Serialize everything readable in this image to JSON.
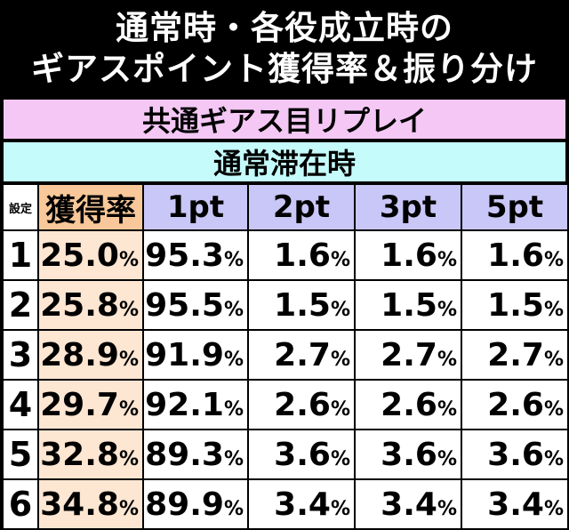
{
  "title": {
    "line1": "通常時・各役成立時の",
    "line2": "ギアスポイント獲得率＆振り分け"
  },
  "section": "共通ギアス目リプレイ",
  "subsection": "通常滞在時",
  "headers": [
    "設定",
    "獲得率",
    "1pt",
    "2pt",
    "3pt",
    "5pt"
  ],
  "rows": [
    {
      "setting": "1",
      "rate": "25.0",
      "p1": "95.3",
      "p2": "1.6",
      "p3": "1.6",
      "p5": "1.6"
    },
    {
      "setting": "2",
      "rate": "25.8",
      "p1": "95.5",
      "p2": "1.5",
      "p3": "1.5",
      "p5": "1.5"
    },
    {
      "setting": "3",
      "rate": "28.9",
      "p1": "91.9",
      "p2": "2.7",
      "p3": "2.7",
      "p5": "2.7"
    },
    {
      "setting": "4",
      "rate": "29.7",
      "p1": "92.1",
      "p2": "2.6",
      "p3": "2.6",
      "p5": "2.6"
    },
    {
      "setting": "5",
      "rate": "32.8",
      "p1": "89.3",
      "p2": "3.6",
      "p3": "3.6",
      "p5": "3.6"
    },
    {
      "setting": "6",
      "rate": "34.8",
      "p1": "89.9",
      "p2": "3.4",
      "p3": "3.4",
      "p5": "3.4"
    }
  ],
  "unit": "%",
  "colors": {
    "title_bg": "#000000",
    "section_bg": "#f4c7f4",
    "subsection_bg": "#c5fbfb",
    "header_bg": "#c9c7f7",
    "rate_header_bg": "#f8c89a",
    "rate_cell_bg": "#fde6d2"
  }
}
